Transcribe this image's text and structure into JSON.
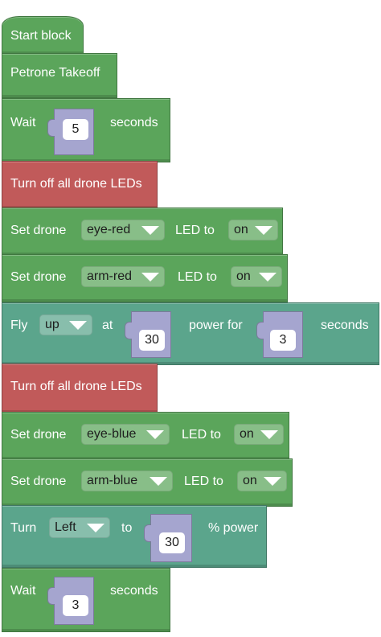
{
  "colors": {
    "motion": "#5ba55b",
    "lights": "#c15a5a",
    "flight": "#5ba58c",
    "value_slot": "#a5a5cf"
  },
  "blocks": [
    {
      "label": "Start block"
    },
    {
      "label": "Petrone Takeoff"
    },
    {
      "prefix": "Wait",
      "value": "5",
      "suffix": "seconds"
    },
    {
      "label": "Turn off all drone LEDs"
    },
    {
      "prefix": "Set drone",
      "target": "eye-red",
      "middle": "LED to",
      "state": "on"
    },
    {
      "prefix": "Set drone",
      "target": "arm-red",
      "middle": "LED to",
      "state": "on"
    },
    {
      "prefix": "Fly",
      "direction": "up",
      "at": "at",
      "power": "30",
      "power_for": "power for",
      "duration": "3",
      "suffix": "seconds"
    },
    {
      "label": "Turn off all drone LEDs"
    },
    {
      "prefix": "Set drone",
      "target": "eye-blue",
      "middle": "LED to",
      "state": "on"
    },
    {
      "prefix": "Set drone",
      "target": "arm-blue",
      "middle": "LED to",
      "state": "on"
    },
    {
      "prefix": "Turn",
      "direction": "Left",
      "to": "to",
      "power": "30",
      "suffix": "% power"
    },
    {
      "prefix": "Wait",
      "value": "3",
      "suffix": "seconds"
    }
  ]
}
